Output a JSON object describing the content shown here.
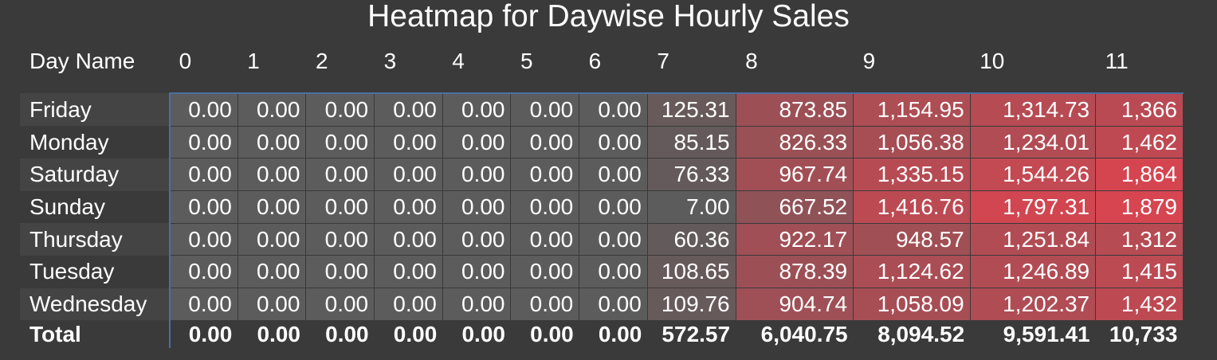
{
  "chart_data": {
    "type": "heatmap",
    "title": "Heatmap for Daywise Hourly Sales",
    "row_header": "Day Name",
    "columns": [
      "0",
      "1",
      "2",
      "3",
      "4",
      "5",
      "6",
      "7",
      "8",
      "9",
      "10",
      "11"
    ],
    "rows": [
      {
        "label": "Friday",
        "values": [
          "0.00",
          "0.00",
          "0.00",
          "0.00",
          "0.00",
          "0.00",
          "0.00",
          "125.31",
          "873.85",
          "1,154.95",
          "1,314.73",
          "1,366"
        ]
      },
      {
        "label": "Monday",
        "values": [
          "0.00",
          "0.00",
          "0.00",
          "0.00",
          "0.00",
          "0.00",
          "0.00",
          "85.15",
          "826.33",
          "1,056.38",
          "1,234.01",
          "1,462"
        ]
      },
      {
        "label": "Saturday",
        "values": [
          "0.00",
          "0.00",
          "0.00",
          "0.00",
          "0.00",
          "0.00",
          "0.00",
          "76.33",
          "967.74",
          "1,335.15",
          "1,544.26",
          "1,864"
        ]
      },
      {
        "label": "Sunday",
        "values": [
          "0.00",
          "0.00",
          "0.00",
          "0.00",
          "0.00",
          "0.00",
          "0.00",
          "7.00",
          "667.52",
          "1,416.76",
          "1,797.31",
          "1,879"
        ]
      },
      {
        "label": "Thursday",
        "values": [
          "0.00",
          "0.00",
          "0.00",
          "0.00",
          "0.00",
          "0.00",
          "0.00",
          "60.36",
          "922.17",
          "948.57",
          "1,251.84",
          "1,312"
        ]
      },
      {
        "label": "Tuesday",
        "values": [
          "0.00",
          "0.00",
          "0.00",
          "0.00",
          "0.00",
          "0.00",
          "0.00",
          "108.65",
          "878.39",
          "1,124.62",
          "1,246.89",
          "1,415"
        ]
      },
      {
        "label": "Wednesday",
        "values": [
          "0.00",
          "0.00",
          "0.00",
          "0.00",
          "0.00",
          "0.00",
          "0.00",
          "109.76",
          "904.74",
          "1,058.09",
          "1,202.37",
          "1,432"
        ]
      }
    ],
    "total": {
      "label": "Total",
      "values": [
        "0.00",
        "0.00",
        "0.00",
        "0.00",
        "0.00",
        "0.00",
        "0.00",
        "572.57",
        "6,040.75",
        "8,094.52",
        "9,591.41",
        "10,733"
      ]
    },
    "color_scale": {
      "low": "#5c5c5c",
      "high": "#d64550"
    }
  }
}
